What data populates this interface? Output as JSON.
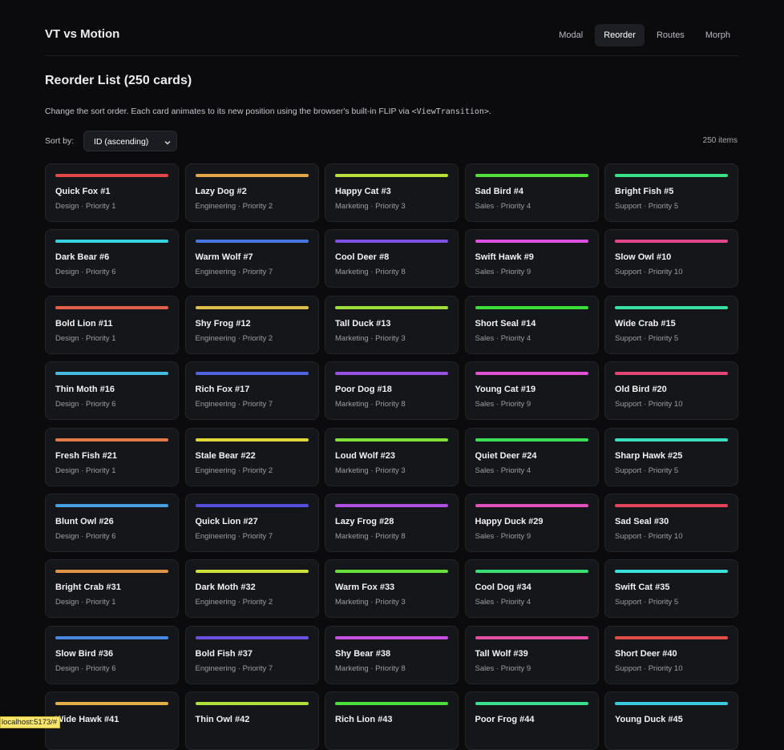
{
  "header": {
    "brand": "VT vs Motion",
    "nav": [
      "Modal",
      "Reorder",
      "Routes",
      "Morph"
    ],
    "active_nav": 1
  },
  "page": {
    "title": "Reorder List (250 cards)",
    "description": "Change the sort order. Each card animates to its new position using the browser's built-in FLIP via ",
    "description_code": "<ViewTransition>",
    "description_end": ".",
    "sort_label": "Sort by:",
    "sort_value": "ID (ascending)",
    "count": "250 items"
  },
  "cards": [
    {
      "title": "Quick Fox #1",
      "meta": "Design · Priority 1",
      "color": "hsl(0,72%,58%)"
    },
    {
      "title": "Lazy Dog #2",
      "meta": "Engineering · Priority 2",
      "color": "hsl(37,72%,58%)"
    },
    {
      "title": "Happy Cat #3",
      "meta": "Marketing · Priority 3",
      "color": "hsl(74,72%,55%)"
    },
    {
      "title": "Sad Bird #4",
      "meta": "Sales · Priority 4",
      "color": "hsl(111,72%,55%)"
    },
    {
      "title": "Bright Fish #5",
      "meta": "Support · Priority 5",
      "color": "hsl(148,72%,55%)"
    },
    {
      "title": "Dark Bear #6",
      "meta": "Design · Priority 6",
      "color": "hsl(185,72%,55%)"
    },
    {
      "title": "Warm Wolf #7",
      "meta": "Engineering · Priority 7",
      "color": "hsl(222,72%,58%)"
    },
    {
      "title": "Cool Deer #8",
      "meta": "Marketing · Priority 8",
      "color": "hsl(259,72%,60%)"
    },
    {
      "title": "Swift Hawk #9",
      "meta": "Sales · Priority 9",
      "color": "hsl(296,72%,60%)"
    },
    {
      "title": "Slow Owl #10",
      "meta": "Support · Priority 10",
      "color": "hsl(333,72%,58%)"
    },
    {
      "title": "Bold Lion #11",
      "meta": "Design · Priority 1",
      "color": "hsl(10,72%,58%)"
    },
    {
      "title": "Shy Frog #12",
      "meta": "Engineering · Priority 2",
      "color": "hsl(47,72%,58%)"
    },
    {
      "title": "Tall Duck #13",
      "meta": "Marketing · Priority 3",
      "color": "hsl(84,72%,55%)"
    },
    {
      "title": "Short Seal #14",
      "meta": "Sales · Priority 4",
      "color": "hsl(121,72%,55%)"
    },
    {
      "title": "Wide Crab #15",
      "meta": "Support · Priority 5",
      "color": "hsl(158,72%,55%)"
    },
    {
      "title": "Thin Moth #16",
      "meta": "Design · Priority 6",
      "color": "hsl(195,72%,58%)"
    },
    {
      "title": "Rich Fox #17",
      "meta": "Engineering · Priority 7",
      "color": "hsl(232,72%,60%)"
    },
    {
      "title": "Poor Dog #18",
      "meta": "Marketing · Priority 8",
      "color": "hsl(269,72%,60%)"
    },
    {
      "title": "Young Cat #19",
      "meta": "Sales · Priority 9",
      "color": "hsl(306,72%,60%)"
    },
    {
      "title": "Old Bird #20",
      "meta": "Support · Priority 10",
      "color": "hsl(343,72%,58%)"
    },
    {
      "title": "Fresh Fish #21",
      "meta": "Design · Priority 1",
      "color": "hsl(20,72%,58%)"
    },
    {
      "title": "Stale Bear #22",
      "meta": "Engineering · Priority 2",
      "color": "hsl(57,72%,55%)"
    },
    {
      "title": "Loud Wolf #23",
      "meta": "Marketing · Priority 3",
      "color": "hsl(94,72%,55%)"
    },
    {
      "title": "Quiet Deer #24",
      "meta": "Sales · Priority 4",
      "color": "hsl(131,72%,55%)"
    },
    {
      "title": "Sharp Hawk #25",
      "meta": "Support · Priority 5",
      "color": "hsl(168,72%,55%)"
    },
    {
      "title": "Blunt Owl #26",
      "meta": "Design · Priority 6",
      "color": "hsl(205,72%,58%)"
    },
    {
      "title": "Quick Lion #27",
      "meta": "Engineering · Priority 7",
      "color": "hsl(242,72%,60%)"
    },
    {
      "title": "Lazy Frog #28",
      "meta": "Marketing · Priority 8",
      "color": "hsl(279,72%,60%)"
    },
    {
      "title": "Happy Duck #29",
      "meta": "Sales · Priority 9",
      "color": "hsl(316,72%,60%)"
    },
    {
      "title": "Sad Seal #30",
      "meta": "Support · Priority 10",
      "color": "hsl(353,72%,58%)"
    },
    {
      "title": "Bright Crab #31",
      "meta": "Design · Priority 1",
      "color": "hsl(30,72%,58%)"
    },
    {
      "title": "Dark Moth #32",
      "meta": "Engineering · Priority 2",
      "color": "hsl(67,72%,55%)"
    },
    {
      "title": "Warm Fox #33",
      "meta": "Marketing · Priority 3",
      "color": "hsl(104,72%,55%)"
    },
    {
      "title": "Cool Dog #34",
      "meta": "Sales · Priority 4",
      "color": "hsl(141,72%,55%)"
    },
    {
      "title": "Swift Cat #35",
      "meta": "Support · Priority 5",
      "color": "hsl(178,72%,55%)"
    },
    {
      "title": "Slow Bird #36",
      "meta": "Design · Priority 6",
      "color": "hsl(215,72%,58%)"
    },
    {
      "title": "Bold Fish #37",
      "meta": "Engineering · Priority 7",
      "color": "hsl(252,72%,60%)"
    },
    {
      "title": "Shy Bear #38",
      "meta": "Marketing · Priority 8",
      "color": "hsl(289,72%,60%)"
    },
    {
      "title": "Tall Wolf #39",
      "meta": "Sales · Priority 9",
      "color": "hsl(326,72%,60%)"
    },
    {
      "title": "Short Deer #40",
      "meta": "Support · Priority 10",
      "color": "hsl(3,72%,58%)"
    },
    {
      "title": "Wide Hawk #41",
      "color": "hsl(40,72%,58%)"
    },
    {
      "title": "Thin Owl #42",
      "color": "hsl(77,72%,55%)"
    },
    {
      "title": "Rich Lion #43",
      "color": "hsl(114,72%,55%)"
    },
    {
      "title": "Poor Frog #44",
      "color": "hsl(151,72%,55%)"
    },
    {
      "title": "Young Duck #45",
      "color": "hsl(188,72%,55%)"
    }
  ],
  "status_bar": "localhost:5173/#"
}
